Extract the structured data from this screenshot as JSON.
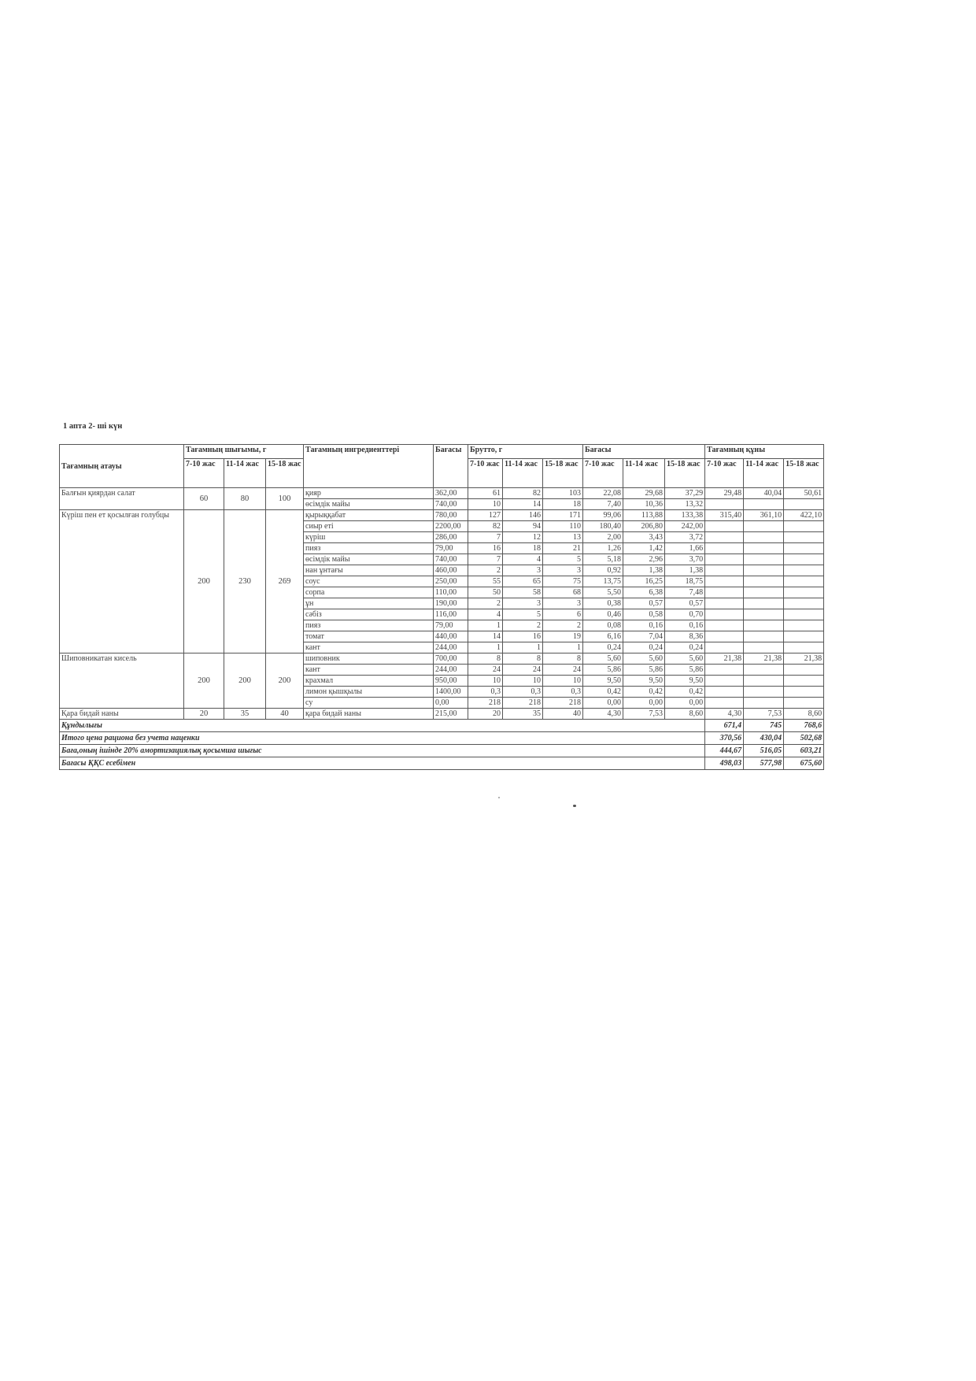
{
  "title": "1 апта  2- ші  күн",
  "headers": {
    "dish_name": "Тағамның атауы",
    "yield_group": "Тағамның шығымы, г",
    "ingredients": "Тағамның ингредиенттері",
    "price": "Бағасы",
    "brutto_group": "Брутто, г",
    "cost_group": "Бағасы",
    "dish_cost_group": "Тағамның құны",
    "ages_yield": [
      "7-10 жас",
      "11-14 жас",
      "15-18 жас"
    ],
    "ages": [
      "7-10 жас",
      "11-14 жас",
      "15-18 жас"
    ]
  },
  "dishes": [
    {
      "name": "Балғын қиярдан салат",
      "yield": [
        "60",
        "80",
        "100"
      ],
      "total": [
        "29,48",
        "40,04",
        "50,61"
      ],
      "ingredients": [
        {
          "name": "қияр",
          "price": "362,00",
          "brutto": [
            "61",
            "82",
            "103"
          ],
          "cost": [
            "22,08",
            "29,68",
            "37,29"
          ]
        },
        {
          "name": "өсімдік майы",
          "price": "740,00",
          "brutto": [
            "10",
            "14",
            "18"
          ],
          "cost": [
            "7,40",
            "10,36",
            "13,32"
          ]
        }
      ]
    },
    {
      "name": "Күріш пен ет қосылған голубцы",
      "yield": [
        "200",
        "230",
        "269"
      ],
      "total": [
        "315,40",
        "361,10",
        "422,10"
      ],
      "ingredients": [
        {
          "name": "қырыққабат",
          "price": "780,00",
          "brutto": [
            "127",
            "146",
            "171"
          ],
          "cost": [
            "99,06",
            "113,88",
            "133,38"
          ]
        },
        {
          "name": "сиыр еті",
          "price": "2200,00",
          "brutto": [
            "82",
            "94",
            "110"
          ],
          "cost": [
            "180,40",
            "206,80",
            "242,00"
          ]
        },
        {
          "name": "күріш",
          "price": "286,00",
          "brutto": [
            "7",
            "12",
            "13"
          ],
          "cost": [
            "2,00",
            "3,43",
            "3,72"
          ]
        },
        {
          "name": "пияз",
          "price": "79,00",
          "brutto": [
            "16",
            "18",
            "21"
          ],
          "cost": [
            "1,26",
            "1,42",
            "1,66"
          ]
        },
        {
          "name": "өсімдік майы",
          "price": "740,00",
          "brutto": [
            "7",
            "4",
            "5"
          ],
          "cost": [
            "5,18",
            "2,96",
            "3,70"
          ]
        },
        {
          "name": "нан ұнтағы",
          "price": "460,00",
          "brutto": [
            "2",
            "3",
            "3"
          ],
          "cost": [
            "0,92",
            "1,38",
            "1,38"
          ]
        },
        {
          "name": "соус",
          "price": "250,00",
          "brutto": [
            "55",
            "65",
            "75"
          ],
          "cost": [
            "13,75",
            "16,25",
            "18,75"
          ]
        },
        {
          "name": "сорпа",
          "price": "110,00",
          "brutto": [
            "50",
            "58",
            "68"
          ],
          "cost": [
            "5,50",
            "6,38",
            "7,48"
          ]
        },
        {
          "name": "ұн",
          "price": "190,00",
          "brutto": [
            "2",
            "3",
            "3"
          ],
          "cost": [
            "0,38",
            "0,57",
            "0,57"
          ]
        },
        {
          "name": "сәбіз",
          "price": "116,00",
          "brutto": [
            "4",
            "5",
            "6"
          ],
          "cost": [
            "0,46",
            "0,58",
            "0,70"
          ]
        },
        {
          "name": "пияз",
          "price": "79,00",
          "brutto": [
            "1",
            "2",
            "2"
          ],
          "cost": [
            "0,08",
            "0,16",
            "0,16"
          ]
        },
        {
          "name": "томат",
          "price": "440,00",
          "brutto": [
            "14",
            "16",
            "19"
          ],
          "cost": [
            "6,16",
            "7,04",
            "8,36"
          ]
        },
        {
          "name": "кант",
          "price": "244,00",
          "brutto": [
            "1",
            "1",
            "1"
          ],
          "cost": [
            "0,24",
            "0,24",
            "0,24"
          ]
        }
      ]
    },
    {
      "name": "Шиповникатан кисель",
      "yield": [
        "200",
        "200",
        "200"
      ],
      "total": [
        "21,38",
        "21,38",
        "21,38"
      ],
      "ingredients": [
        {
          "name": "шиповник",
          "price": "700,00",
          "brutto": [
            "8",
            "8",
            "8"
          ],
          "cost": [
            "5,60",
            "5,60",
            "5,60"
          ]
        },
        {
          "name": "кант",
          "price": "244,00",
          "brutto": [
            "24",
            "24",
            "24"
          ],
          "cost": [
            "5,86",
            "5,86",
            "5,86"
          ]
        },
        {
          "name": "крахмал",
          "price": "950,00",
          "brutto": [
            "10",
            "10",
            "10"
          ],
          "cost": [
            "9,50",
            "9,50",
            "9,50"
          ]
        },
        {
          "name": "лимон қышқылы",
          "price": "1400,00",
          "brutto": [
            "0,3",
            "0,3",
            "0,3"
          ],
          "cost": [
            "0,42",
            "0,42",
            "0,42"
          ]
        },
        {
          "name": "су",
          "price": "0,00",
          "brutto": [
            "218",
            "218",
            "218"
          ],
          "cost": [
            "0,00",
            "0,00",
            "0,00"
          ]
        }
      ]
    },
    {
      "name": "Қара бидай наны",
      "yield": [
        "20",
        "35",
        "40"
      ],
      "total": [
        "4,30",
        "7,53",
        "8,60"
      ],
      "ingredients": [
        {
          "name": "қара бидай наны",
          "price": "215,00",
          "brutto": [
            "20",
            "35",
            "40"
          ],
          "cost": [
            "4,30",
            "7,53",
            "8,60"
          ]
        }
      ]
    }
  ],
  "footer": [
    {
      "label": "Құндылығы",
      "values": [
        "671,4",
        "745",
        "768,6"
      ]
    },
    {
      "label": "Итого цена рациона без учета наценки",
      "values": [
        "370,56",
        "430,04",
        "502,68"
      ]
    },
    {
      "label": "Баға,оның ішінде 20% амортизациялық қосымша  шығыс",
      "values": [
        "444,67",
        "516,05",
        "603,21"
      ]
    },
    {
      "label": "Бағасы  ҚҚС есебімен",
      "values": [
        "498,03",
        "577,98",
        "675,60"
      ]
    }
  ]
}
